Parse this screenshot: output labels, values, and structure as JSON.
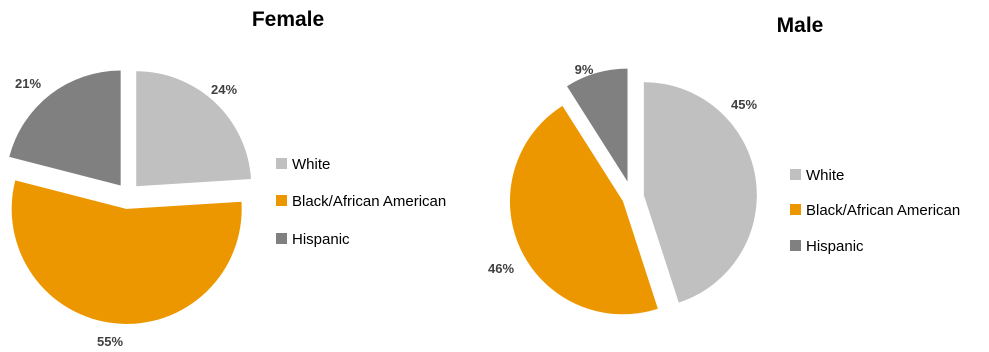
{
  "chart_data": [
    {
      "type": "pie",
      "title": "Female",
      "categories": [
        "White",
        "Black/African American",
        "Hispanic"
      ],
      "values": [
        24,
        55,
        21
      ],
      "labels": [
        "24%",
        "55%",
        "21%"
      ],
      "colors": [
        "#c0c0c0",
        "#ed9700",
        "#808080"
      ],
      "legend": "right"
    },
    {
      "type": "pie",
      "title": "Male",
      "categories": [
        "White",
        "Black/African American",
        "Hispanic"
      ],
      "values": [
        45,
        46,
        9
      ],
      "labels": [
        "45%",
        "46%",
        "9%"
      ],
      "colors": [
        "#c0c0c0",
        "#ed9700",
        "#808080"
      ],
      "legend": "right"
    }
  ]
}
